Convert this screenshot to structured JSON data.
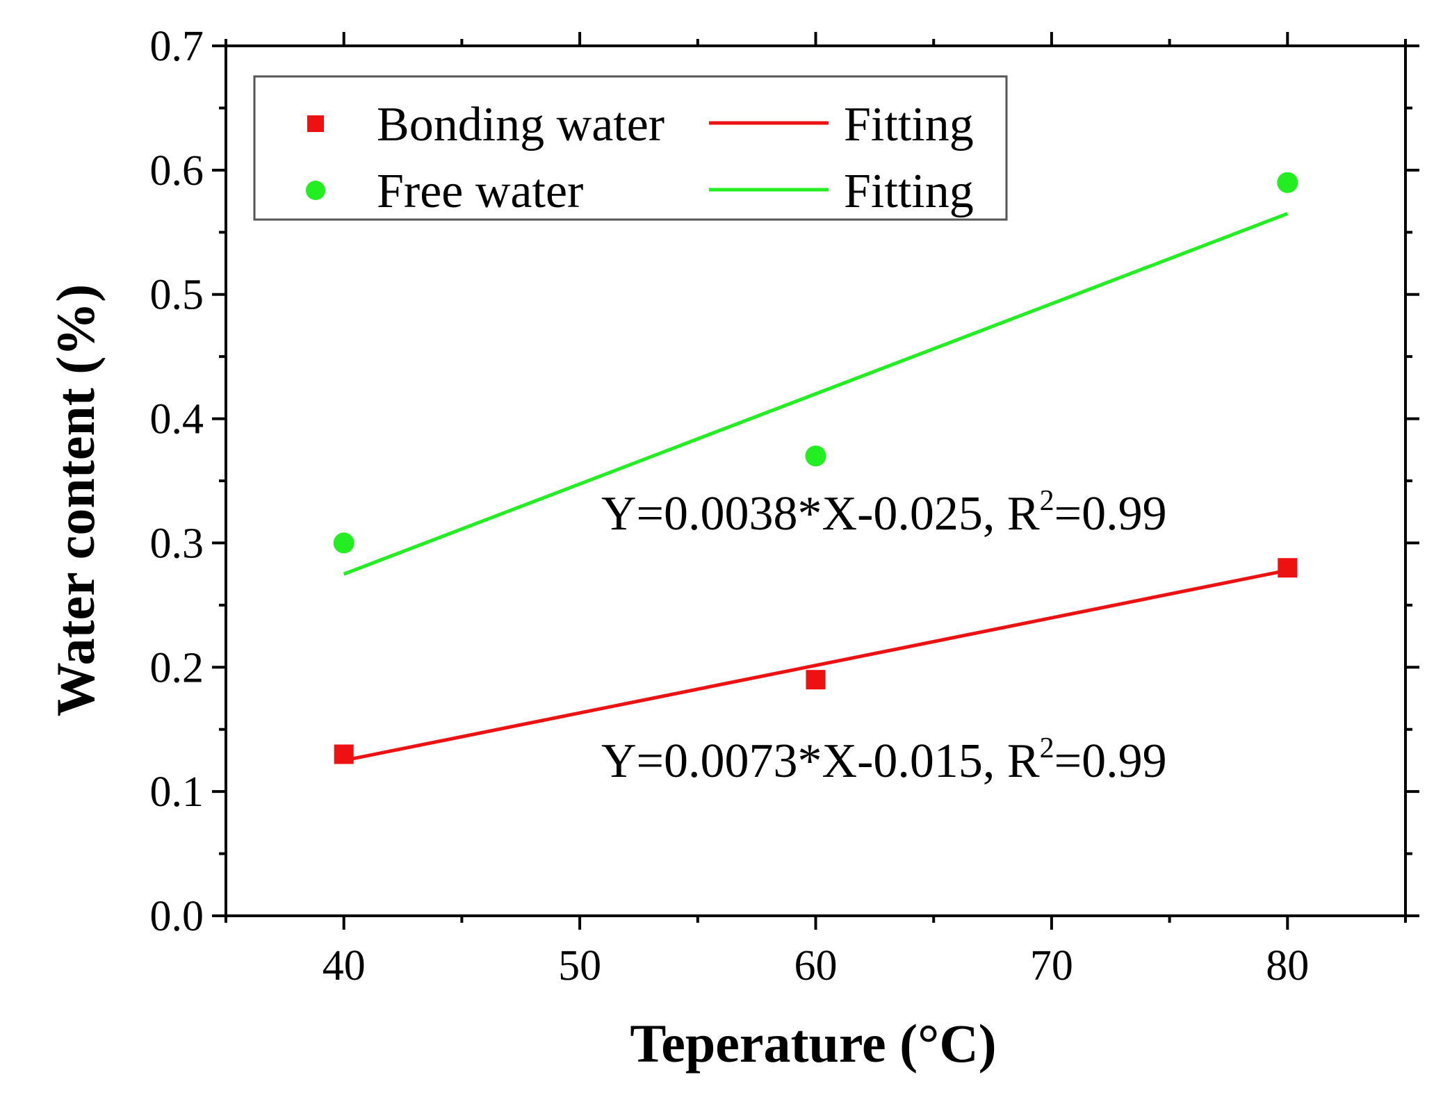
{
  "chart_data": {
    "type": "scatter",
    "title": "",
    "xlabel": "Teperature (°C)",
    "ylabel": "Water content (%)",
    "xlim": [
      35,
      85
    ],
    "ylim": [
      0.0,
      0.7
    ],
    "x_ticks": [
      40,
      50,
      60,
      70,
      80
    ],
    "x_tick_labels": [
      "40",
      "50",
      "60",
      "70",
      "80"
    ],
    "y_ticks": [
      0.0,
      0.1,
      0.2,
      0.3,
      0.4,
      0.5,
      0.6,
      0.7
    ],
    "y_tick_labels": [
      "0.0",
      "0.1",
      "0.2",
      "0.3",
      "0.4",
      "0.5",
      "0.6",
      "0.7"
    ],
    "grid": false,
    "legend_position": "top-left",
    "series": [
      {
        "name": "Bonding water",
        "marker": "square",
        "color": "#ee1111",
        "x": [
          40,
          60,
          80
        ],
        "y": [
          0.13,
          0.19,
          0.28
        ],
        "fit": {
          "label": "Fitting",
          "x": [
            40,
            80
          ],
          "y": [
            0.125,
            0.278
          ]
        }
      },
      {
        "name": "Free water",
        "marker": "circle",
        "color": "#22ee22",
        "x": [
          40,
          60,
          80
        ],
        "y": [
          0.3,
          0.37,
          0.59
        ],
        "fit": {
          "label": "Fitting",
          "x": [
            40,
            80
          ],
          "y": [
            0.275,
            0.565
          ]
        }
      }
    ],
    "annotations": [
      {
        "main": "Y=0.0038*X-0.025,  R",
        "sup": "2",
        "tail": "=0.99"
      },
      {
        "main": "Y=0.0073*X-0.015,  R",
        "sup": "2",
        "tail": "=0.99"
      }
    ]
  }
}
